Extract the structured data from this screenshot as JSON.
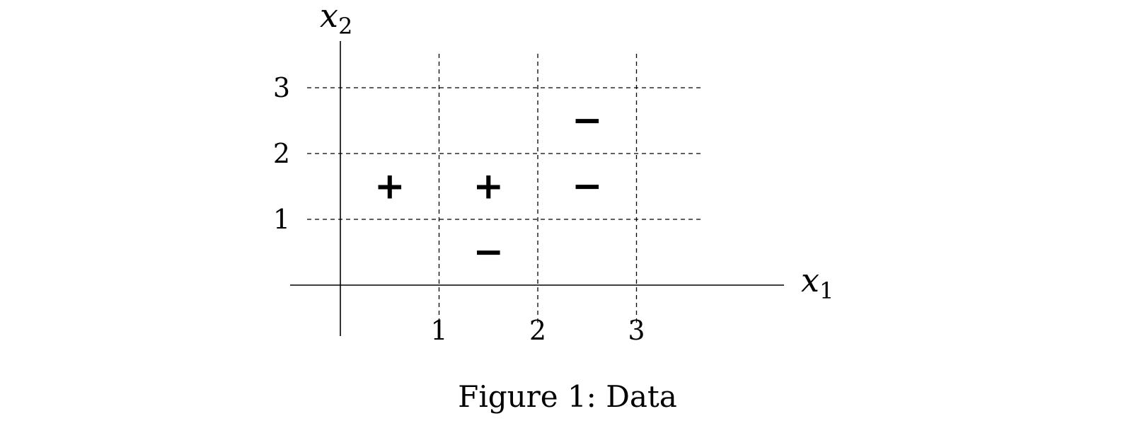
{
  "caption": "Figure 1: Data",
  "chart_data": {
    "type": "scatter",
    "xlabel": "x",
    "xlabel_sub": "1",
    "ylabel": "x",
    "ylabel_sub": "2",
    "x_ticks": [
      1,
      2,
      3
    ],
    "y_ticks": [
      1,
      2,
      3
    ],
    "grid": true,
    "grid_style": "dashed",
    "points": [
      {
        "x": 0.5,
        "y": 1.5,
        "label": "+"
      },
      {
        "x": 1.5,
        "y": 1.5,
        "label": "+"
      },
      {
        "x": 1.5,
        "y": 0.5,
        "label": "−"
      },
      {
        "x": 2.5,
        "y": 1.5,
        "label": "−"
      },
      {
        "x": 2.5,
        "y": 2.5,
        "label": "−"
      }
    ]
  }
}
